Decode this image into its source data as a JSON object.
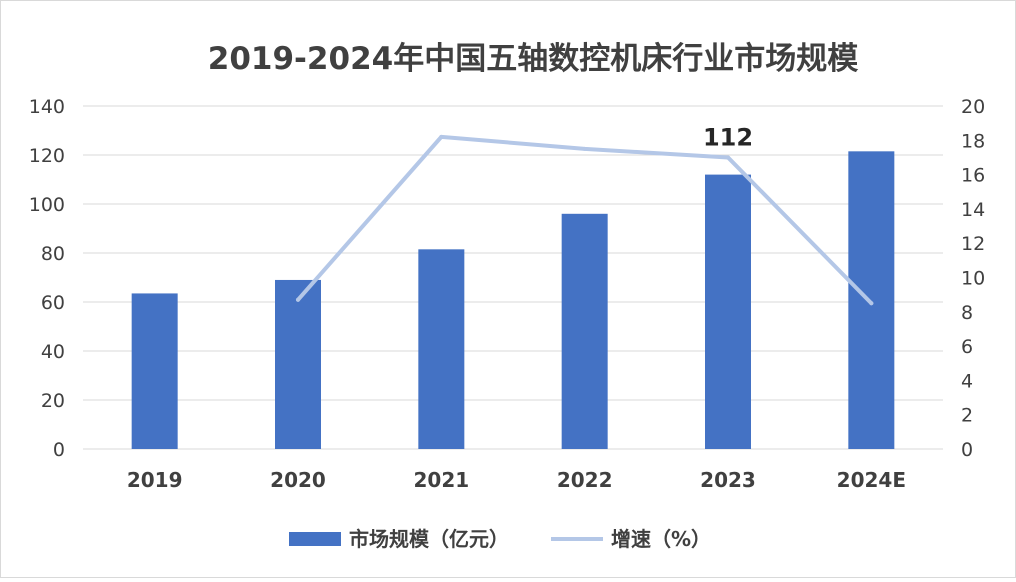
{
  "chart_data": {
    "type": "bar",
    "title": "2019-2024年中国五轴数控机床行业市场规模",
    "categories": [
      "2019",
      "2020",
      "2021",
      "2022",
      "2023",
      "2024E"
    ],
    "series": [
      {
        "name": "市场规模（亿元）",
        "type": "bar",
        "axis": "left",
        "values": [
          63.5,
          69,
          81.5,
          96,
          112,
          121.5
        ]
      },
      {
        "name": "增速（%）",
        "type": "line",
        "axis": "right",
        "values": [
          null,
          8.7,
          18.2,
          17.5,
          17.0,
          8.5
        ]
      }
    ],
    "y_left": {
      "ylim": [
        0,
        140
      ],
      "ticks": [
        "0",
        "20",
        "40",
        "60",
        "80",
        "100",
        "120",
        "140"
      ]
    },
    "y_right": {
      "ylim": [
        0,
        20
      ],
      "ticks": [
        "0",
        "2",
        "4",
        "6",
        "8",
        "10",
        "12",
        "14",
        "16",
        "18",
        "20"
      ]
    },
    "annotations": [
      {
        "category": "2023",
        "text": "112"
      }
    ],
    "grid": true,
    "legend_position": "bottom",
    "colors": {
      "bar": "#4472C4",
      "line": "#B4C7E7",
      "grid": "#D9D9D9",
      "text": "#404040"
    }
  }
}
